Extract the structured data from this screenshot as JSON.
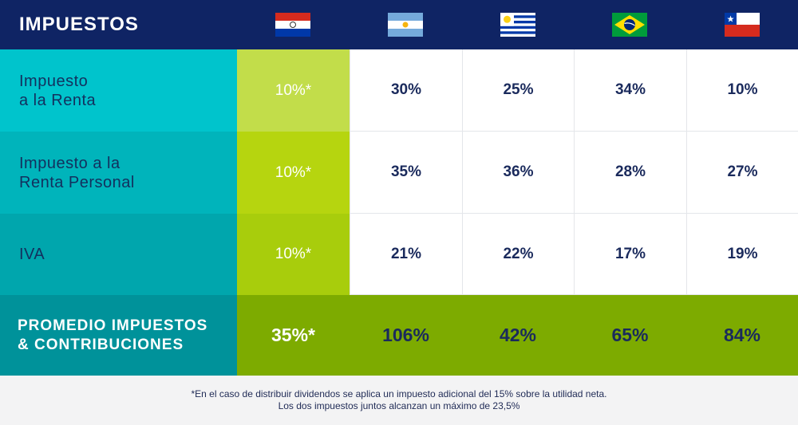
{
  "header": {
    "title": "IMPUESTOS",
    "flags": [
      "paraguay-flag",
      "argentina-flag",
      "uruguay-flag",
      "brazil-flag",
      "chile-flag"
    ]
  },
  "rows": [
    {
      "label_lines": [
        "Impuesto",
        "a la Renta"
      ],
      "values": [
        "10%*",
        "30%",
        "25%",
        "34%",
        "10%"
      ]
    },
    {
      "label_lines": [
        "Impuesto a la",
        "Renta Personal"
      ],
      "values": [
        "10%*",
        "35%",
        "36%",
        "28%",
        "27%"
      ]
    },
    {
      "label_lines": [
        "IVA"
      ],
      "values": [
        "10%*",
        "21%",
        "22%",
        "17%",
        "19%"
      ]
    }
  ],
  "total": {
    "label_lines": [
      "PROMEDIO IMPUESTOS",
      "& CONTRIBUCIONES"
    ],
    "values": [
      "35%*",
      "106%",
      "42%",
      "65%",
      "84%"
    ]
  },
  "footer": {
    "line1": "*En el caso de distribuir dividendos se aplica un impuesto adicional del 15% sobre la utilidad neta.",
    "line2": "Los dos impuestos juntos alcanzan un máximo de 23,5%"
  },
  "colors": {
    "header_bg": "#0f2464",
    "row1_label": "#00c4cc",
    "row2_label": "#00b4bb",
    "row3_label": "#00a6ad",
    "total_label": "#00929a",
    "row1_py": "#c2dd4a",
    "row2_py": "#b6d50f",
    "row3_py": "#a8cd0c",
    "total_bg": "#7dab00"
  }
}
